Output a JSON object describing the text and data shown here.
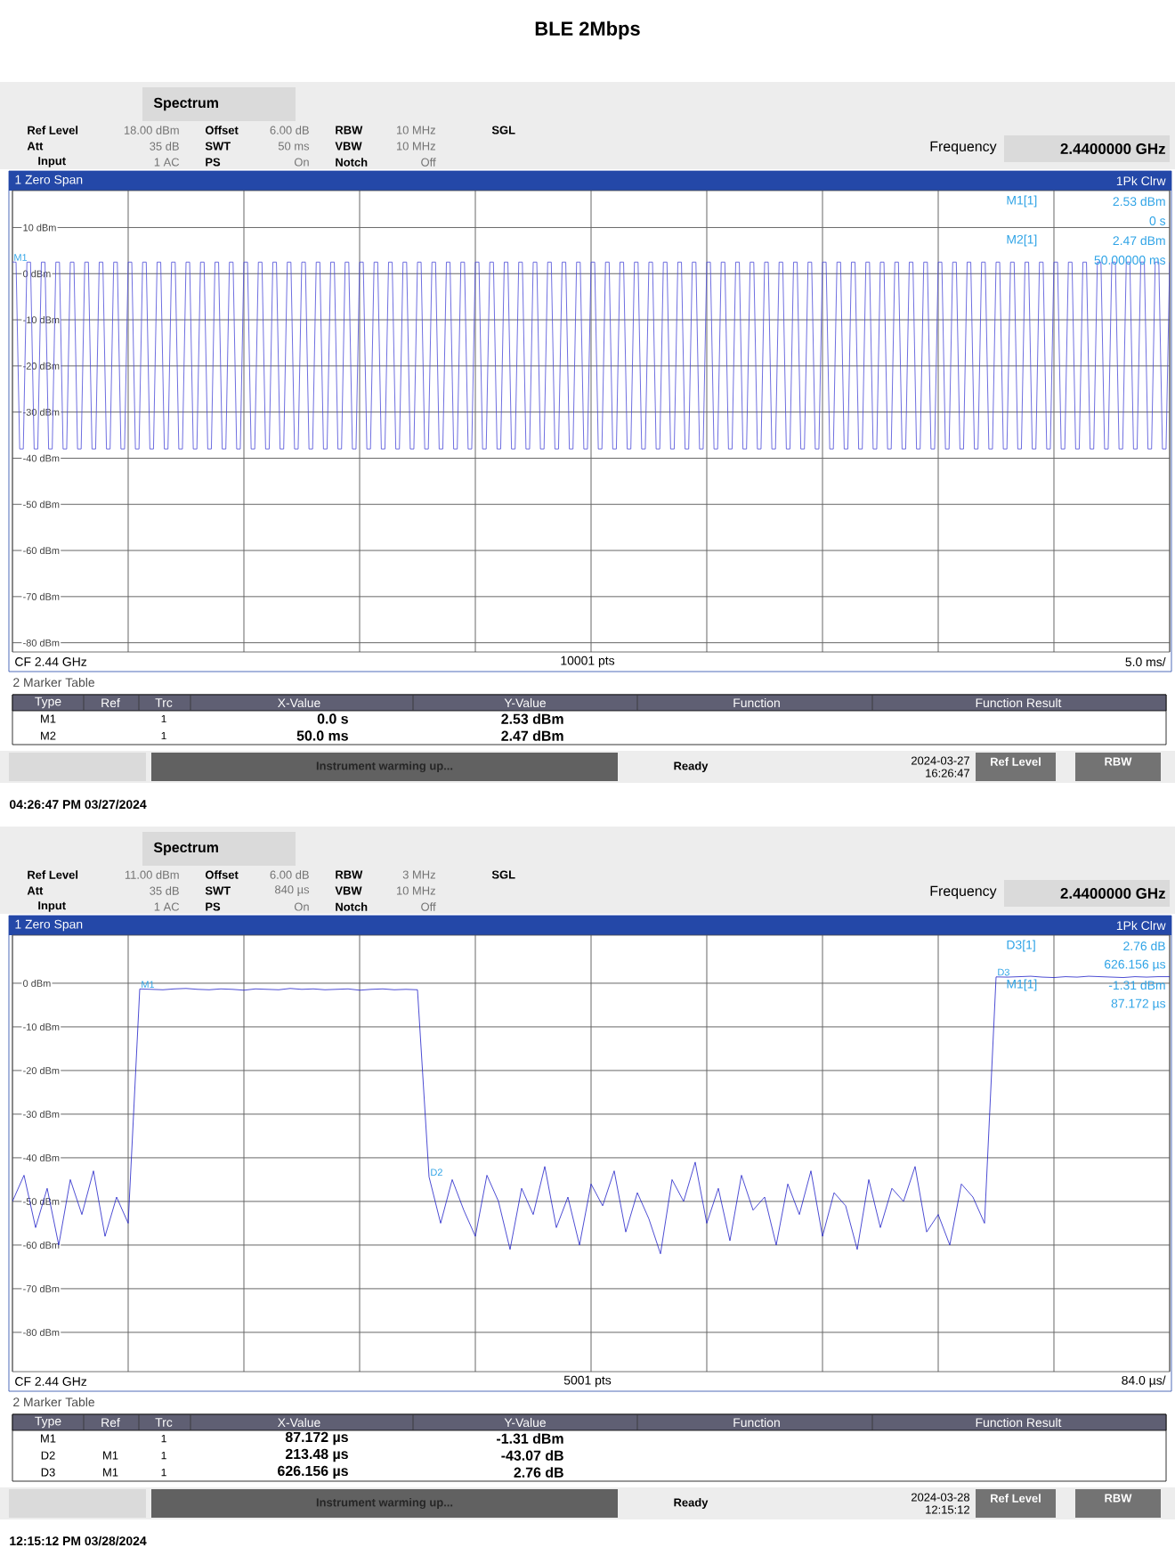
{
  "chart_data": [
    {
      "type": "line",
      "title": "BLE 2Mbps",
      "grid": true,
      "ylim": [
        -82,
        18
      ],
      "yticks": [
        {
          "value": 10,
          "label": "10 dBm"
        },
        {
          "value": 0,
          "label": "0 dBm"
        },
        {
          "value": -10,
          "label": "-10 dBm"
        },
        {
          "value": -20,
          "label": "-20 dBm"
        },
        {
          "value": -30,
          "label": "-30 dBm"
        },
        {
          "value": -40,
          "label": "-40 dBm"
        },
        {
          "value": -50,
          "label": "-50 dBm"
        },
        {
          "value": -60,
          "label": "-60 dBm"
        },
        {
          "value": -70,
          "label": "-70 dBm"
        },
        {
          "value": -80,
          "label": "-80 dBm"
        }
      ],
      "categories": [
        null,
        null,
        null,
        null,
        null,
        null,
        null,
        null,
        null,
        null,
        null,
        null,
        null,
        null,
        null,
        null,
        null,
        null,
        null,
        null,
        null,
        null,
        null,
        null,
        null,
        null,
        null,
        null,
        null,
        null,
        null,
        null,
        null,
        null,
        null,
        null,
        null,
        null,
        null,
        null,
        null,
        null,
        null,
        null,
        null,
        null,
        null,
        null,
        null,
        null,
        null,
        null,
        null,
        null,
        null,
        null,
        null,
        null,
        null,
        null,
        null,
        null,
        null,
        null,
        null,
        null,
        null,
        null,
        null,
        null,
        null,
        null,
        null,
        null,
        null,
        null,
        null,
        null,
        null,
        null,
        null,
        null,
        null,
        null,
        null,
        null,
        null,
        null,
        null,
        null,
        null,
        null,
        null,
        null,
        null,
        null,
        null,
        null,
        null,
        null,
        null,
        null,
        null,
        null,
        null,
        null,
        null,
        null,
        null,
        null,
        null,
        null,
        null,
        null,
        null,
        null,
        null,
        null,
        null,
        null,
        null,
        null,
        null,
        null,
        null,
        null,
        null,
        null,
        null,
        null,
        null,
        null,
        null,
        null,
        null,
        null,
        null,
        null,
        null,
        null,
        null,
        null,
        null,
        null,
        null,
        null,
        null,
        null,
        null,
        null,
        null,
        null,
        null,
        null,
        null,
        null,
        null,
        null,
        null,
        null,
        null,
        null,
        null,
        null,
        null,
        null,
        null,
        null,
        null,
        null,
        null,
        null,
        null,
        null,
        null,
        null,
        null,
        null,
        null,
        null,
        null,
        null,
        null,
        null,
        null,
        null,
        null,
        null,
        null,
        null,
        null,
        null,
        null,
        null,
        null,
        null,
        null,
        null,
        null,
        null,
        null,
        null,
        null,
        null,
        null,
        null,
        null,
        null,
        null,
        null,
        null,
        null,
        null,
        null,
        null,
        null,
        null,
        null,
        null,
        null,
        null,
        null,
        null,
        null,
        null,
        null,
        null,
        null,
        null,
        null,
        null,
        null,
        null,
        null,
        null,
        null,
        null,
        null,
        null,
        null,
        null,
        null,
        null,
        null,
        null,
        null,
        null,
        null,
        null,
        null,
        null,
        null,
        null,
        null,
        null,
        null,
        null,
        null,
        null,
        null,
        null,
        null,
        null,
        null,
        null,
        null,
        null,
        null,
        null,
        null,
        null,
        null,
        null,
        null,
        null,
        null,
        null,
        null,
        null,
        null,
        null,
        null,
        null,
        null,
        null,
        null,
        null,
        null,
        null,
        null,
        null,
        null,
        null,
        null,
        null,
        null,
        null,
        null,
        null,
        null,
        null,
        null,
        null,
        null,
        null,
        null,
        null,
        null,
        null,
        null,
        null,
        null,
        null,
        null,
        null,
        null,
        null,
        null,
        null,
        null,
        null
      ],
      "series": [
        {
          "color": "#4a4ad8",
          "values": [
            2.53,
            2.5,
            -38,
            -38,
            2.5,
            2.5,
            -38,
            -38,
            2.5,
            2.5,
            -38,
            -38,
            2.5,
            2.5,
            -38,
            -38,
            2.5,
            2.5,
            -38,
            -38,
            2.5,
            2.5,
            -38,
            -38,
            2.5,
            2.5,
            -38,
            -38,
            2.5,
            2.5,
            -38,
            -38,
            2.5,
            2.5,
            -38,
            -38,
            2.5,
            2.5,
            -38,
            -38,
            2.5,
            2.5,
            -38,
            -38,
            2.5,
            2.5,
            -38,
            -38,
            2.5,
            2.5,
            -38,
            -38,
            2.5,
            2.5,
            -38,
            -38,
            2.5,
            2.5,
            -38,
            -38,
            2.5,
            2.5,
            -38,
            -38,
            2.5,
            2.5,
            -38,
            -38,
            2.5,
            2.5,
            -38,
            -38,
            2.5,
            2.5,
            -38,
            -38,
            2.5,
            2.5,
            -38,
            -38,
            2.5,
            2.5,
            -38,
            -38,
            2.5,
            2.5,
            -38,
            -38,
            2.5,
            2.5,
            -38,
            -38,
            2.5,
            2.5,
            -38,
            -38,
            2.5,
            2.5,
            -38,
            -38,
            2.5,
            2.5,
            -38,
            -38,
            2.5,
            2.5,
            -38,
            -38,
            2.5,
            2.5,
            -38,
            -38,
            2.5,
            2.5,
            -38,
            -38,
            2.5,
            2.5,
            -38,
            -38,
            2.5,
            2.5,
            -38,
            -38,
            2.5,
            2.5,
            -38,
            -38,
            2.5,
            2.5,
            -38,
            -38,
            2.5,
            2.5,
            -38,
            -38,
            2.5,
            2.5,
            -38,
            -38,
            2.5,
            2.5,
            -38,
            -38,
            2.5,
            2.5,
            -38,
            -38,
            2.5,
            2.5,
            -38,
            -38,
            2.5,
            2.5,
            -38,
            -38,
            2.5,
            2.5,
            -38,
            -38,
            2.5,
            2.5,
            -38,
            -38,
            2.5,
            2.5,
            -38,
            -38,
            2.5,
            2.5,
            -38,
            -38,
            2.5,
            2.5,
            -38,
            -38,
            2.5,
            2.5,
            -38,
            -38,
            2.5,
            2.5,
            -38,
            -38,
            2.5,
            2.5,
            -38,
            -38,
            2.5,
            2.5,
            -38,
            -38,
            2.5,
            2.5,
            -38,
            -38,
            2.5,
            2.5,
            -38,
            -38,
            2.5,
            2.5,
            -38,
            -38,
            2.5,
            2.5,
            -38,
            -38,
            2.5,
            2.5,
            -38,
            -38,
            2.5,
            2.5,
            -38,
            -38,
            2.5,
            2.5,
            -38,
            -38,
            2.5,
            2.5,
            -38,
            -38,
            2.5,
            2.5,
            -38,
            -38,
            2.5,
            2.5,
            -38,
            -38,
            2.5,
            2.5,
            -38,
            -38,
            2.5,
            2.5,
            -38,
            -38,
            2.5,
            2.5,
            -38,
            -38,
            2.5,
            2.5,
            -38,
            -38,
            2.5,
            2.5,
            -38,
            -38,
            2.5,
            2.5,
            -38,
            -38,
            2.5,
            2.5,
            -38,
            -38,
            2.5,
            2.5,
            -38,
            -38,
            2.5,
            2.5,
            -38,
            -38,
            2.5,
            2.5,
            -38,
            -38,
            2.5,
            2.5,
            -38,
            -38,
            2.5,
            2.5,
            -38,
            -38,
            2.5,
            2.5,
            -38,
            -38,
            2.5,
            2.5,
            -38,
            -38,
            2.5,
            2.5,
            -38,
            -38,
            2.5,
            2.5,
            -38,
            -38,
            2.5,
            2.5,
            -38,
            -38,
            2.5,
            2.5,
            -38,
            -38,
            2.5,
            2.5,
            -38,
            -38,
            2.5,
            2.5,
            -38,
            -38,
            2.5,
            2.5,
            -38,
            -38,
            2.5,
            2.5,
            -38,
            -38,
            2.47
          ]
        }
      ],
      "annotations": [
        "Spectrum",
        "Ref Level",
        "18.00 dBm",
        "Att",
        "35 dB",
        "Input",
        "1 AC",
        "Offset",
        "6.00 dB",
        "SWT",
        "50 ms",
        "PS",
        "On",
        "RBW",
        "10 MHz",
        "VBW",
        "10 MHz",
        "Notch",
        "Off",
        "SGL",
        "Frequency",
        "2.4400000 GHz",
        "1 Zero Span",
        "1Pk Clrw",
        "M1[1]",
        "2.53 dBm",
        "0 s",
        "M2[1]",
        "2.47 dBm",
        "50.00000 ms",
        "CF 2.44 GHz",
        "10001 pts",
        "5.0 ms/",
        "2 Marker Table",
        "Type",
        "Ref",
        "Trc",
        "X-Value",
        "Y-Value",
        "Function",
        "Function Result",
        "Instrument warming up...",
        "Ready",
        "2024-03-27",
        "16:26:47",
        "Ref Level",
        "RBW",
        "04:26:47 PM 03/27/2024",
        {
          "text": "M1",
          "y": 2.53
        },
        "M1",
        "1",
        "0.0 s",
        "2.53 dBm",
        "M2",
        "1",
        "50.0 ms",
        "2.47 dBm"
      ]
    },
    {
      "type": "line",
      "grid": true,
      "ylim": [
        -89,
        11
      ],
      "yticks": [
        {
          "value": 0,
          "label": "0 dBm"
        },
        {
          "value": -10,
          "label": "-10 dBm"
        },
        {
          "value": -20,
          "label": "-20 dBm"
        },
        {
          "value": -30,
          "label": "-30 dBm"
        },
        {
          "value": -40,
          "label": "-40 dBm"
        },
        {
          "value": -50,
          "label": "-50 dBm"
        },
        {
          "value": -60,
          "label": "-60 dBm"
        },
        {
          "value": -70,
          "label": "-70 dBm"
        },
        {
          "value": -80,
          "label": "-80 dBm"
        }
      ],
      "categories": [
        null,
        null,
        null,
        null,
        null,
        null,
        null,
        null,
        null,
        null,
        null,
        null,
        null,
        null,
        null,
        null,
        null,
        null,
        null,
        null,
        null,
        null,
        null,
        null,
        null,
        null,
        null,
        null,
        null,
        null,
        null,
        null,
        null,
        null,
        null,
        null,
        null,
        null,
        null,
        null,
        null,
        null,
        null,
        null,
        null,
        null,
        null,
        null,
        null,
        null,
        null,
        null,
        null,
        null,
        null,
        null,
        null,
        null,
        null,
        null,
        null,
        null,
        null,
        null,
        null,
        null,
        null,
        null,
        null,
        null,
        null,
        null,
        null,
        null,
        null,
        null,
        null,
        null,
        null,
        null,
        null,
        null,
        null,
        null,
        null,
        null,
        null,
        null,
        null,
        null,
        null,
        null,
        null,
        null,
        null,
        null,
        null,
        null,
        null,
        null,
        null
      ],
      "series": [
        {
          "color": "#1f1fc8",
          "values": [
            -50,
            -44,
            -56,
            -47,
            -60,
            -45,
            -53,
            -43,
            -58,
            -49,
            -55,
            -1.31,
            -1.4,
            -1.5,
            -1.3,
            -1.2,
            -1.4,
            -1.5,
            -1.3,
            -1.4,
            -1.6,
            -1.3,
            -1.4,
            -1.5,
            -1.2,
            -1.4,
            -1.3,
            -1.5,
            -1.4,
            -1.3,
            -1.6,
            -1.4,
            -1.3,
            -1.5,
            -1.4,
            -1.5,
            -44.38,
            -55,
            -45,
            -52,
            -58,
            -44,
            -50,
            -61,
            -47,
            -53,
            -42,
            -56,
            -49,
            -60,
            -46,
            -51,
            -43,
            -57,
            -48,
            -54,
            -62,
            -45,
            -50,
            -41,
            -55,
            -47,
            -59,
            -44,
            -52,
            -49,
            -60,
            -46,
            -53,
            -43,
            -58,
            -48,
            -51,
            -61,
            -45,
            -56,
            -47,
            -50,
            -42,
            -57,
            -53,
            -60,
            -46,
            -49,
            -55,
            1.45,
            1.4,
            1.5,
            1.6,
            1.4,
            1.3,
            1.5,
            1.4,
            1.6,
            1.5,
            1.4,
            1.3,
            1.5,
            1.4,
            1.5,
            1.5
          ]
        }
      ],
      "annotations": [
        "Spectrum",
        "Ref Level",
        "11.00 dBm",
        "Att",
        "35 dB",
        "Input",
        "1 AC",
        "Offset",
        "6.00 dB",
        "SWT",
        "840 µs",
        "PS",
        "On",
        "RBW",
        "3 MHz",
        "VBW",
        "10 MHz",
        "Notch",
        "Off",
        "SGL",
        "Frequency",
        "2.4400000 GHz",
        "1 Zero Span",
        "1Pk Clrw",
        "D3[1]",
        "2.76 dB",
        "626.156 µs",
        "M1[1]",
        "-1.31 dBm",
        "87.172 µs",
        "CF 2.44 GHz",
        "5001 pts",
        "84.0 µs/",
        "2 Marker Table",
        "Type",
        "Ref",
        "Trc",
        "X-Value",
        "Y-Value",
        "Function",
        "Function Result",
        "Instrument warming up...",
        "Ready",
        "2024-03-28",
        "12:15:12",
        "Ref Level",
        "RBW",
        "12:15:12 PM 03/28/2024",
        {
          "text": "M1",
          "y": -1.31
        },
        {
          "text": "D2",
          "y": -44.38
        },
        {
          "text": "D3",
          "y": 1.45
        },
        "M1",
        "1",
        "87.172 µs",
        "-1.31 dBm",
        "D2",
        "M1",
        "1",
        "213.48 µs",
        "-43.07 dB",
        "D3",
        "M1",
        "1",
        "626.156 µs",
        "2.76 dB"
      ]
    }
  ]
}
